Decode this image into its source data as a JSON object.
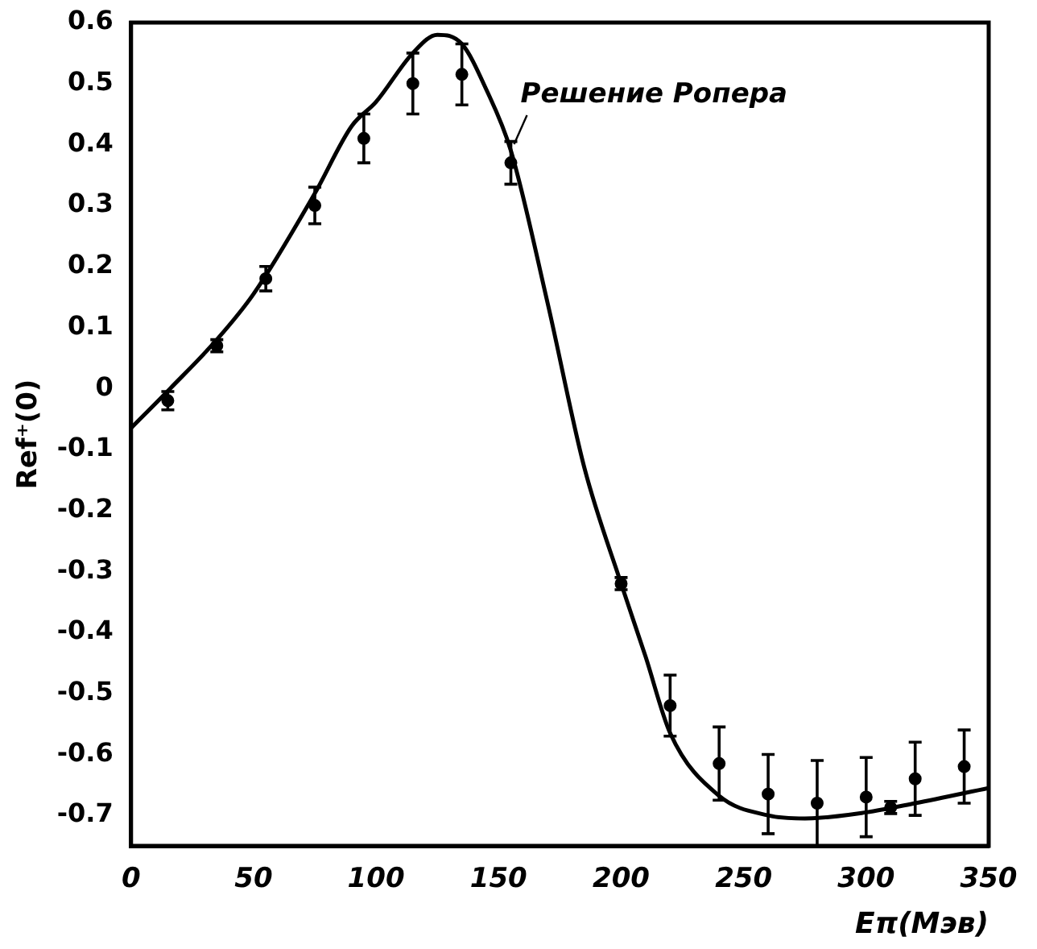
{
  "chart_data": {
    "type": "scatter",
    "xlabel": "Eπ(Мэв)",
    "ylabel": "Ref⁺(0)",
    "xlim": [
      0,
      350
    ],
    "xticks": [
      0,
      50,
      100,
      150,
      200,
      250,
      300,
      350
    ],
    "ylim": [
      -0.75,
      0.6
    ],
    "yticks": [
      -0.7,
      -0.6,
      -0.5,
      -0.4,
      -0.3,
      -0.2,
      -0.1,
      0,
      0.1,
      0.2,
      0.3,
      0.4,
      0.5,
      0.6
    ],
    "marker": "circle",
    "series": [
      {
        "color": "#000000",
        "x": [
          15,
          35,
          55,
          75,
          95,
          115,
          135,
          155,
          200,
          220,
          240,
          260,
          280,
          300,
          310,
          320,
          340
        ],
        "values": [
          -0.02,
          0.07,
          0.18,
          0.3,
          0.41,
          0.5,
          0.515,
          0.37,
          -0.32,
          -0.52,
          -0.615,
          -0.665,
          -0.68,
          -0.67,
          -0.687,
          -0.64,
          -0.62
        ],
        "errors": [
          0.015,
          0.01,
          0.02,
          0.03,
          0.04,
          0.05,
          0.05,
          0.035,
          0.01,
          0.05,
          0.06,
          0.065,
          0.07,
          0.065,
          0.01,
          0.06,
          0.06
        ]
      },
      {
        "type": "line",
        "name": "Решение Ропера",
        "color": "#000000",
        "marker": "none",
        "x": [
          0,
          16,
          35,
          50,
          75,
          90,
          100,
          115,
          125,
          135,
          145,
          155,
          170,
          185,
          200,
          210,
          220,
          240,
          260,
          275,
          300,
          320,
          350
        ],
        "values": [
          -0.065,
          0,
          0.08,
          0.155,
          0.32,
          0.43,
          0.47,
          0.55,
          0.58,
          0.565,
          0.49,
          0.39,
          0.14,
          -0.13,
          -0.32,
          -0.44,
          -0.565,
          -0.668,
          -0.7,
          -0.705,
          -0.695,
          -0.68,
          -0.655
        ]
      }
    ]
  }
}
